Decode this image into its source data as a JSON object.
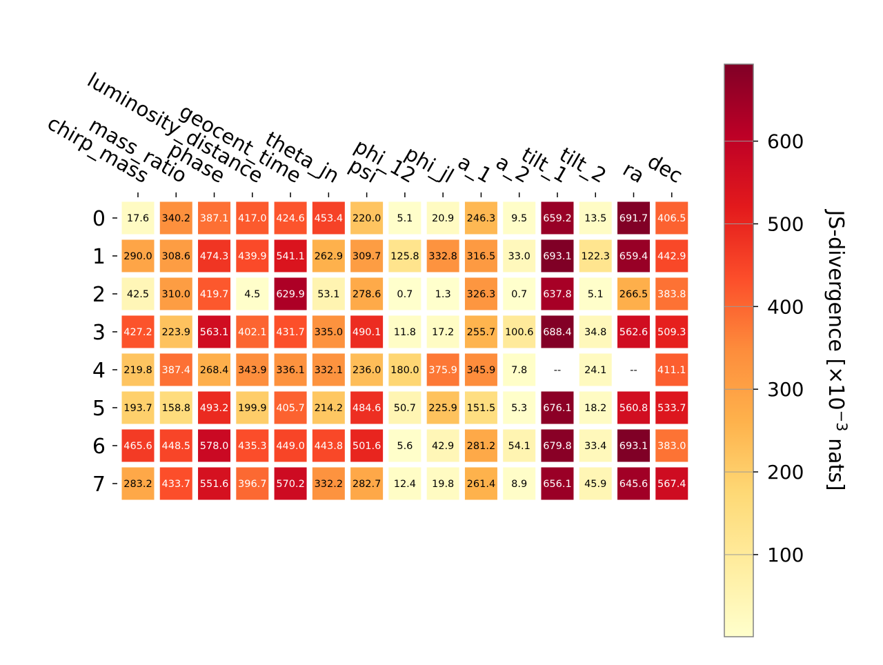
{
  "chart_data": {
    "type": "heatmap",
    "title": "",
    "x_categories": [
      "chirp_mass",
      "mass_ratio",
      "phase",
      "luminosity_distance",
      "geocent_time",
      "theta_jn",
      "psi",
      "phi_12",
      "phi_jl",
      "a_1",
      "a_2",
      "tilt_1",
      "tilt_2",
      "ra",
      "dec"
    ],
    "y_categories": [
      "0",
      "1",
      "2",
      "3",
      "4",
      "5",
      "6",
      "7"
    ],
    "values": [
      [
        17.6,
        340.2,
        387.1,
        417.0,
        424.6,
        453.4,
        220.0,
        5.1,
        20.9,
        246.3,
        9.5,
        659.2,
        13.5,
        691.7,
        406.5
      ],
      [
        290.0,
        308.6,
        474.3,
        439.9,
        541.1,
        262.9,
        309.7,
        125.8,
        332.8,
        316.5,
        33.0,
        693.1,
        122.3,
        659.4,
        442.9
      ],
      [
        42.5,
        310.0,
        419.7,
        4.5,
        629.9,
        53.1,
        278.6,
        0.7,
        1.3,
        326.3,
        0.7,
        637.8,
        5.1,
        266.5,
        383.8
      ],
      [
        427.2,
        223.9,
        563.1,
        402.1,
        431.7,
        335.0,
        490.1,
        11.8,
        17.2,
        255.7,
        100.6,
        688.4,
        34.8,
        562.6,
        509.3
      ],
      [
        219.8,
        387.4,
        268.4,
        343.9,
        336.1,
        332.1,
        236.0,
        180.0,
        375.9,
        345.9,
        7.8,
        null,
        24.1,
        null,
        411.1
      ],
      [
        193.7,
        158.8,
        493.2,
        199.9,
        405.7,
        214.2,
        484.6,
        50.7,
        225.9,
        151.5,
        5.3,
        676.1,
        18.2,
        560.8,
        533.7
      ],
      [
        465.6,
        448.5,
        578.0,
        435.3,
        449.0,
        443.8,
        501.6,
        5.6,
        42.9,
        281.2,
        54.1,
        679.8,
        33.4,
        693.1,
        383.0
      ],
      [
        283.2,
        433.7,
        551.6,
        396.7,
        570.2,
        332.2,
        282.7,
        12.4,
        19.8,
        261.4,
        8.9,
        656.1,
        45.9,
        645.6,
        567.4
      ]
    ],
    "missing_label": "--",
    "colormap": "YlOrRd",
    "vmin": 0.7,
    "vmax": 693.1,
    "colorbar": {
      "label": "JS-divergence [×10",
      "label_exponent": "−3",
      "label_suffix": " nats]",
      "ticks": [
        100,
        200,
        300,
        400,
        500,
        600
      ]
    },
    "grid": false
  }
}
